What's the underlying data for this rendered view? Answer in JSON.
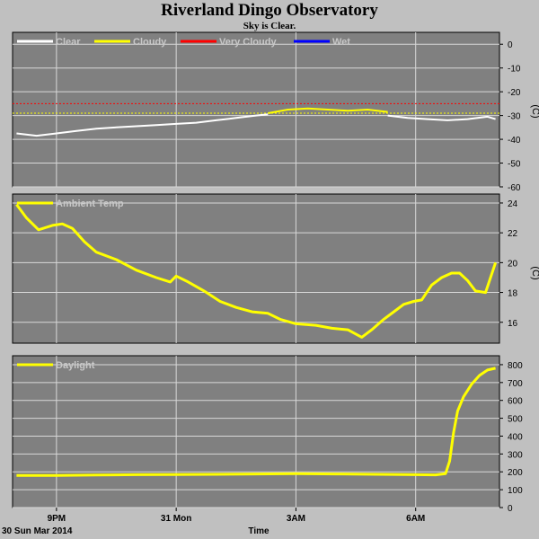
{
  "header": {
    "title": "Riverland Dingo Observatory",
    "subtitle": "Sky is Clear."
  },
  "footer": {
    "date_label": "30 Sun Mar 2014",
    "xlabel": "Time"
  },
  "colors": {
    "background": "#c0c0c0",
    "plot_bg": "#808080",
    "grid": "#d8d8d8",
    "clear": "#ffffff",
    "cloudy": "#ffff00",
    "very_cloudy": "#ff0000",
    "wet": "#0000ff"
  },
  "chart_data": [
    {
      "type": "line",
      "ylabel": "(C)",
      "ylim": [
        -60,
        5
      ],
      "yticks": [
        "0",
        "-10",
        "-20",
        "-30",
        "-40",
        "-50",
        "-60"
      ],
      "ytick_values": [
        0,
        -10,
        -20,
        -30,
        -40,
        -50,
        -60
      ],
      "xticks": [
        "9PM",
        "31 Mon",
        "3AM",
        "6AM"
      ],
      "xtick_values": [
        21,
        24,
        27,
        30
      ],
      "xlim": [
        19.9,
        32.1
      ],
      "legend": [
        "Clear",
        "Cloudy",
        "Very Cloudy",
        "Wet"
      ],
      "legend_colors": [
        "#ffffff",
        "#ffff00",
        "#ff0000",
        "#0000ff"
      ],
      "thresholds": [
        {
          "name": "Very Cloudy",
          "value": -25,
          "color": "#ff0000"
        },
        {
          "name": "Cloudy",
          "value": -29,
          "color": "#ffff00"
        }
      ],
      "series": [
        {
          "name": "Clear",
          "color": "#ffffff",
          "segments": [
            {
              "color": "#ffffff",
              "x": [
                20.0,
                20.5,
                21.0,
                21.5,
                22.0,
                22.5,
                23.0,
                23.5,
                24.0,
                24.5,
                25.0,
                25.5,
                26.0,
                26.3
              ],
              "y": [
                -37.5,
                -38.5,
                -37.5,
                -36.5,
                -35.5,
                -35.0,
                -34.5,
                -34.0,
                -33.5,
                -33.0,
                -32.0,
                -31.0,
                -30.0,
                -29.5
              ]
            },
            {
              "color": "#ffff00",
              "x": [
                26.3,
                26.8,
                27.3,
                27.8,
                28.3,
                28.8,
                29.3
              ],
              "y": [
                -29.0,
                -27.5,
                -27.0,
                -27.5,
                -28.0,
                -27.5,
                -28.5
              ]
            },
            {
              "color": "#ffffff",
              "x": [
                29.3,
                29.8,
                30.3,
                30.8,
                31.3,
                31.8,
                32.0
              ],
              "y": [
                -30.0,
                -31.0,
                -31.5,
                -32.0,
                -31.5,
                -30.5,
                -31.5
              ]
            }
          ]
        }
      ]
    },
    {
      "type": "line",
      "ylabel": "(C)",
      "ylim": [
        14.6,
        24.6
      ],
      "yticks": [
        "24",
        "22",
        "20",
        "18",
        "16"
      ],
      "ytick_values": [
        24,
        22,
        20,
        18,
        16
      ],
      "xticks": [
        "9PM",
        "31 Mon",
        "3AM",
        "6AM"
      ],
      "xtick_values": [
        21,
        24,
        27,
        30
      ],
      "xlim": [
        19.9,
        32.1
      ],
      "legend": [
        "Ambient Temp"
      ],
      "legend_colors": [
        "#ffff00"
      ],
      "series": [
        {
          "name": "Ambient Temp",
          "color": "#ffff00",
          "x": [
            20.0,
            20.25,
            20.55,
            20.9,
            21.15,
            21.4,
            21.7,
            22.0,
            22.5,
            23.0,
            23.5,
            23.85,
            24.0,
            24.3,
            24.7,
            25.1,
            25.5,
            25.9,
            26.3,
            26.6,
            27.0,
            27.5,
            27.9,
            28.3,
            28.65,
            28.9,
            29.2,
            29.5,
            29.7,
            29.95,
            30.15,
            30.4,
            30.65,
            30.9,
            31.1,
            31.3,
            31.5,
            31.75,
            32.0
          ],
          "y": [
            23.9,
            23.0,
            22.2,
            22.5,
            22.6,
            22.3,
            21.4,
            20.7,
            20.2,
            19.5,
            19.0,
            18.7,
            19.1,
            18.7,
            18.1,
            17.4,
            17.0,
            16.7,
            16.6,
            16.2,
            15.9,
            15.8,
            15.6,
            15.5,
            15.0,
            15.5,
            16.2,
            16.8,
            17.2,
            17.4,
            17.5,
            18.5,
            19.0,
            19.3,
            19.3,
            18.8,
            18.1,
            18.0,
            20.0
          ]
        }
      ]
    },
    {
      "type": "line",
      "ylabel": "",
      "ylim": [
        0,
        850
      ],
      "yticks": [
        "800",
        "700",
        "600",
        "500",
        "400",
        "300",
        "200",
        "100",
        "0"
      ],
      "ytick_values": [
        800,
        700,
        600,
        500,
        400,
        300,
        200,
        100,
        0
      ],
      "xticks": [
        "9PM",
        "31 Mon",
        "3AM",
        "6AM"
      ],
      "xtick_values": [
        21,
        24,
        27,
        30
      ],
      "xlim": [
        19.9,
        32.1
      ],
      "legend": [
        "Daylight"
      ],
      "legend_colors": [
        "#ffff00"
      ],
      "series": [
        {
          "name": "Daylight",
          "color": "#ffff00",
          "x": [
            20.0,
            21.0,
            22.0,
            23.0,
            24.0,
            25.0,
            26.0,
            27.0,
            28.0,
            29.0,
            30.0,
            30.5,
            30.75,
            30.85,
            30.95,
            31.05,
            31.2,
            31.4,
            31.6,
            31.8,
            32.0
          ],
          "y": [
            180,
            180,
            182,
            184,
            185,
            186,
            188,
            190,
            188,
            186,
            184,
            183,
            190,
            260,
            420,
            540,
            620,
            690,
            740,
            770,
            780
          ]
        }
      ]
    }
  ]
}
